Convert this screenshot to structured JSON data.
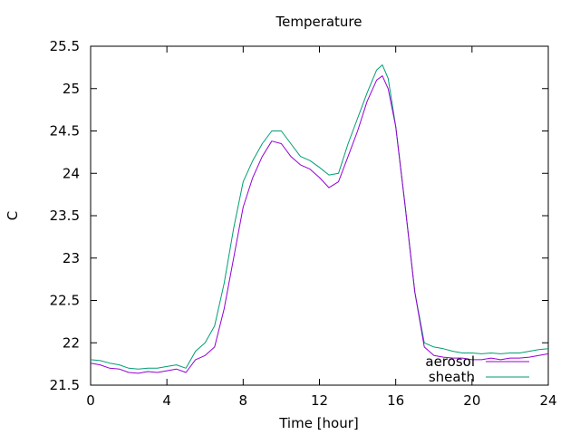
{
  "chart_data": {
    "type": "line",
    "title": "Temperature",
    "xlabel": "Time [hour]",
    "ylabel": "C",
    "xlim": [
      0,
      24
    ],
    "ylim": [
      21.5,
      25.5
    ],
    "xticks": [
      0,
      4,
      8,
      12,
      16,
      20,
      24
    ],
    "yticks": [
      21.5,
      22,
      22.5,
      23,
      23.5,
      24,
      24.5,
      25,
      25.5
    ],
    "grid": false,
    "legend_position": "bottom-right",
    "series": [
      {
        "name": "aerosol",
        "color": "#9400d3",
        "x": [
          0,
          0.5,
          1,
          1.5,
          2,
          2.5,
          3,
          3.5,
          4,
          4.5,
          5,
          5.5,
          6,
          6.5,
          7,
          7.5,
          8,
          8.5,
          9,
          9.5,
          10,
          10.5,
          11,
          11.5,
          12,
          12.5,
          13,
          13.5,
          14,
          14.5,
          15,
          15.3,
          15.6,
          16,
          16.5,
          17,
          17.5,
          18,
          18.5,
          19,
          19.5,
          20,
          20.5,
          21,
          21.5,
          22,
          22.5,
          23,
          23.5,
          24
        ],
        "y": [
          21.76,
          21.74,
          21.7,
          21.69,
          21.65,
          21.64,
          21.66,
          21.65,
          21.67,
          21.69,
          21.65,
          21.8,
          21.85,
          21.95,
          22.4,
          23.0,
          23.6,
          23.95,
          24.2,
          24.38,
          24.35,
          24.2,
          24.1,
          24.05,
          23.95,
          23.83,
          23.9,
          24.2,
          24.5,
          24.85,
          25.1,
          25.15,
          25.0,
          24.55,
          23.6,
          22.6,
          21.95,
          21.85,
          21.83,
          21.82,
          21.82,
          21.8,
          21.8,
          21.82,
          21.8,
          21.82,
          21.82,
          21.83,
          21.85,
          21.87
        ]
      },
      {
        "name": "sheath",
        "color": "#009e73",
        "x": [
          0,
          0.5,
          1,
          1.5,
          2,
          2.5,
          3,
          3.5,
          4,
          4.5,
          5,
          5.5,
          6,
          6.5,
          7,
          7.5,
          8,
          8.5,
          9,
          9.5,
          10,
          10.5,
          11,
          11.5,
          12,
          12.5,
          13,
          13.5,
          14,
          14.5,
          15,
          15.3,
          15.6,
          16,
          16.5,
          17,
          17.5,
          18,
          18.5,
          19,
          19.5,
          20,
          20.5,
          21,
          21.5,
          22,
          22.5,
          23,
          23.5,
          24
        ],
        "y": [
          21.8,
          21.79,
          21.76,
          21.74,
          21.7,
          21.69,
          21.7,
          21.7,
          21.72,
          21.74,
          21.7,
          21.9,
          22.0,
          22.2,
          22.7,
          23.35,
          23.9,
          24.15,
          24.35,
          24.5,
          24.5,
          24.35,
          24.2,
          24.15,
          24.07,
          23.98,
          24.0,
          24.35,
          24.65,
          24.95,
          25.22,
          25.28,
          25.12,
          24.55,
          23.6,
          22.6,
          22.0,
          21.95,
          21.93,
          21.9,
          21.88,
          21.88,
          21.87,
          21.88,
          21.87,
          21.88,
          21.88,
          21.9,
          21.92,
          21.93
        ]
      }
    ]
  }
}
